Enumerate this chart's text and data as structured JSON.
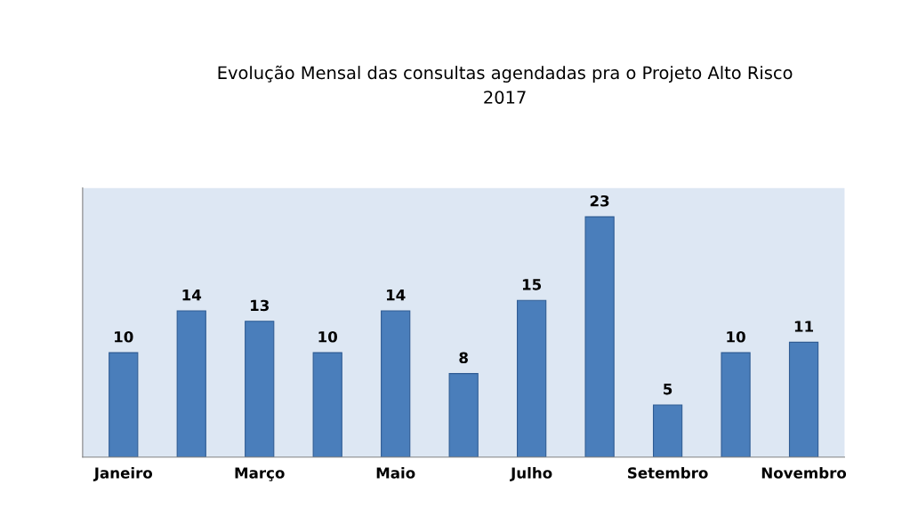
{
  "chart_data": {
    "type": "bar",
    "title": "Evolução Mensal das consultas agendadas pra o Projeto Alto Risco\n2017",
    "categories": [
      "Janeiro",
      null,
      "Março",
      null,
      "Maio",
      null,
      "Julho",
      null,
      "Setembro",
      null,
      "Novembro"
    ],
    "values": [
      10,
      14,
      13,
      10,
      14,
      8,
      15,
      23,
      5,
      10,
      11
    ],
    "color": "#4a7ebb",
    "data_labels": true,
    "tick_labels": "x"
  }
}
